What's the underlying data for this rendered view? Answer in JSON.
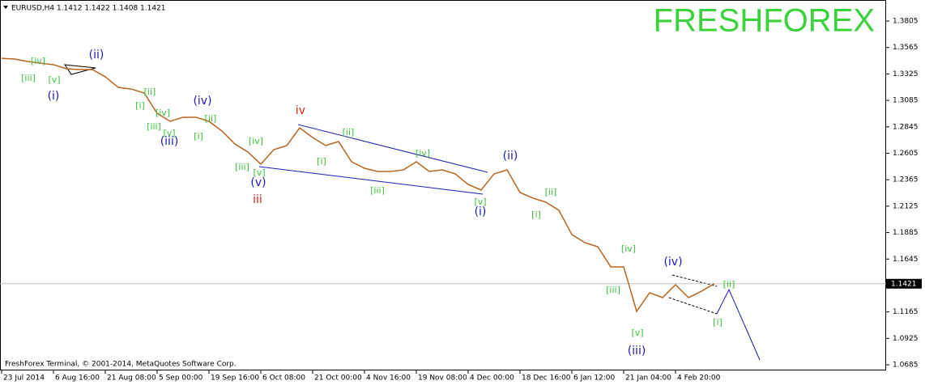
{
  "chart_data": {
    "type": "line",
    "header": "EURUSD,H4  1.1412 1.1422 1.1408 1.1421",
    "watermark": "FRESHFOREX",
    "footer": "FreshForex Terminal, © 2001-2014, MetaQuotes Software Corp.",
    "categories": [
      "23 Jul 2014",
      null,
      null,
      null,
      "6 Aug 16:00",
      null,
      null,
      null,
      "21 Aug 08:00",
      null,
      null,
      null,
      "5 Sep 00:00",
      null,
      null,
      null,
      "19 Sep 16:00",
      null,
      null,
      null,
      "6 Oct 08:00",
      null,
      null,
      null,
      "21 Oct 00:00",
      null,
      null,
      null,
      "4 Nov 16:00",
      null,
      null,
      null,
      "19 Nov 08:00",
      null,
      null,
      null,
      "4 Dec 00:00",
      null,
      null,
      null,
      "18 Dec 16:00",
      null,
      null,
      null,
      "6 Jan 12:00",
      null,
      null,
      null,
      "21 Jan 04:00",
      null,
      null,
      null,
      "4 Feb 20:00",
      null,
      null,
      null
    ],
    "series": [
      {
        "name": "EURUSD,H4",
        "color": "#b8651e",
        "values": [
          1.3467,
          1.346,
          1.3438,
          1.3423,
          1.3409,
          1.3372,
          1.3365,
          1.3365,
          1.3299,
          1.3203,
          1.3188,
          1.3152,
          1.2968,
          1.2895,
          1.2932,
          1.2932,
          1.2895,
          1.2807,
          1.2689,
          1.2616,
          1.2506,
          1.2638,
          1.2675,
          1.2836,
          1.2748,
          1.2675,
          1.2711,
          1.2528,
          1.2469,
          1.244,
          1.244,
          1.2454,
          1.2528,
          1.244,
          1.2454,
          1.2418,
          1.2322,
          1.2271,
          1.2418,
          1.2454,
          1.2249,
          1.2198,
          1.2161,
          1.2087,
          1.1867,
          1.1794,
          1.1757,
          1.1574,
          1.1574,
          1.117,
          1.1339,
          1.1295,
          1.1412,
          1.1295,
          1.1353,
          1.1421
        ]
      }
    ],
    "current_price": 1.1421,
    "ylim": [
      1.0634,
      1.3996
    ],
    "yticks": [
      1.3805,
      1.3565,
      1.3325,
      1.3085,
      1.2845,
      1.2605,
      1.2365,
      1.2125,
      1.1885,
      1.1645,
      1.1165,
      1.0925,
      1.0685
    ],
    "annotations": [
      {
        "text": "[iv]",
        "color": "#3ac23a"
      },
      {
        "text": "[iii]",
        "color": "#3ac23a"
      },
      {
        "text": "[v]",
        "color": "#3ac23a"
      },
      {
        "text": "(ii)",
        "color": "#1c1cb8"
      },
      {
        "text": "(i)",
        "color": "#1c1cb8"
      },
      {
        "text": "[ii]",
        "color": "#3ac23a"
      },
      {
        "text": "[i]",
        "color": "#3ac23a"
      },
      {
        "text": "[iv]",
        "color": "#3ac23a"
      },
      {
        "text": "[iii]",
        "color": "#3ac23a"
      },
      {
        "text": "[v]",
        "color": "#3ac23a"
      },
      {
        "text": "(iii)",
        "color": "#1c1cb8"
      },
      {
        "text": "[ii]",
        "color": "#3ac23a"
      },
      {
        "text": "[i]",
        "color": "#3ac23a"
      },
      {
        "text": "(iv)",
        "color": "#1c1cb8"
      },
      {
        "text": "[iv]",
        "color": "#3ac23a"
      },
      {
        "text": "[iii]",
        "color": "#3ac23a"
      },
      {
        "text": "[v]",
        "color": "#3ac23a"
      },
      {
        "text": "(v)",
        "color": "#1c1cb8"
      },
      {
        "text": "iii",
        "color": "#dd2222"
      },
      {
        "text": "iv",
        "color": "#dd2222"
      },
      {
        "text": "[ii]",
        "color": "#3ac23a"
      },
      {
        "text": "[i]",
        "color": "#3ac23a"
      },
      {
        "text": "[iv]",
        "color": "#3ac23a"
      },
      {
        "text": "[iii]",
        "color": "#3ac23a"
      },
      {
        "text": "[v]",
        "color": "#3ac23a"
      },
      {
        "text": "(i)",
        "color": "#1c1cb8"
      },
      {
        "text": "(ii)",
        "color": "#1c1cb8"
      },
      {
        "text": "[ii]",
        "color": "#3ac23a"
      },
      {
        "text": "[i]",
        "color": "#3ac23a"
      },
      {
        "text": "[iv]",
        "color": "#3ac23a"
      },
      {
        "text": "[iii]",
        "color": "#3ac23a"
      },
      {
        "text": "[v]",
        "color": "#3ac23a"
      },
      {
        "text": "(iii)",
        "color": "#1c1cb8"
      },
      {
        "text": "(iv)",
        "color": "#1c1cb8"
      },
      {
        "text": "[ii]",
        "color": "#3ac23a"
      },
      {
        "text": "[i]",
        "color": "#3ac23a"
      }
    ]
  }
}
